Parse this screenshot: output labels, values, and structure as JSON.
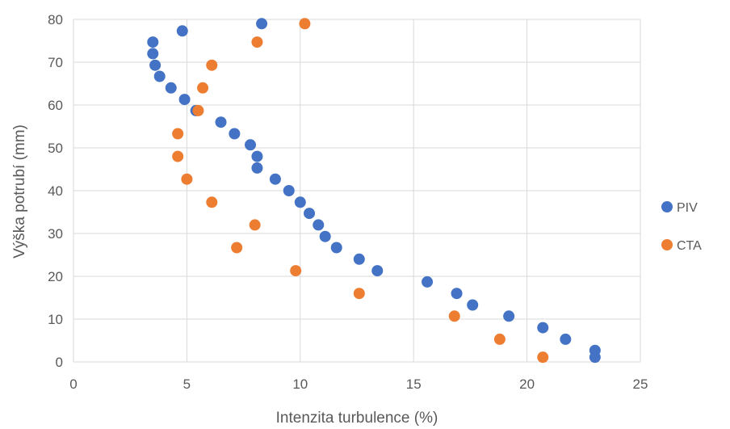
{
  "chart_data": {
    "type": "scatter",
    "title": "",
    "xlabel": "Intenzita turbulence (%)",
    "ylabel": "Výška potrubí (mm)",
    "xlim": [
      0,
      25
    ],
    "ylim": [
      0,
      80
    ],
    "x_ticks": [
      0,
      5,
      10,
      15,
      20,
      25
    ],
    "y_ticks": [
      0,
      10,
      20,
      30,
      40,
      50,
      60,
      70,
      80
    ],
    "grid": true,
    "legend_position": "right",
    "series": [
      {
        "name": "PIV",
        "color": "#4472c4",
        "points": [
          [
            23.0,
            1.1
          ],
          [
            23.0,
            2.7
          ],
          [
            21.7,
            5.3
          ],
          [
            20.7,
            8.0
          ],
          [
            19.2,
            10.7
          ],
          [
            17.6,
            13.3
          ],
          [
            16.9,
            16.0
          ],
          [
            15.6,
            18.7
          ],
          [
            13.4,
            21.3
          ],
          [
            12.6,
            24.0
          ],
          [
            11.6,
            26.7
          ],
          [
            11.1,
            29.3
          ],
          [
            10.8,
            32.0
          ],
          [
            10.4,
            34.7
          ],
          [
            10.0,
            37.3
          ],
          [
            9.5,
            40.0
          ],
          [
            8.9,
            42.7
          ],
          [
            8.1,
            45.3
          ],
          [
            8.1,
            48.0
          ],
          [
            7.8,
            50.7
          ],
          [
            7.1,
            53.3
          ],
          [
            6.5,
            56.0
          ],
          [
            5.4,
            58.7
          ],
          [
            4.9,
            61.3
          ],
          [
            4.3,
            64.0
          ],
          [
            3.8,
            66.7
          ],
          [
            3.6,
            69.3
          ],
          [
            3.5,
            72.0
          ],
          [
            3.5,
            74.7
          ],
          [
            4.8,
            77.3
          ],
          [
            8.3,
            79.0
          ]
        ]
      },
      {
        "name": "CTA",
        "color": "#ed7d31",
        "points": [
          [
            20.7,
            1.1
          ],
          [
            18.8,
            5.3
          ],
          [
            16.8,
            10.7
          ],
          [
            12.6,
            16.0
          ],
          [
            9.8,
            21.3
          ],
          [
            7.2,
            26.7
          ],
          [
            8.0,
            32.0
          ],
          [
            6.1,
            37.3
          ],
          [
            5.0,
            42.7
          ],
          [
            4.6,
            48.0
          ],
          [
            4.6,
            53.3
          ],
          [
            5.5,
            58.7
          ],
          [
            5.7,
            64.0
          ],
          [
            6.1,
            69.3
          ],
          [
            8.1,
            74.7
          ],
          [
            10.2,
            79.0
          ]
        ]
      }
    ]
  }
}
